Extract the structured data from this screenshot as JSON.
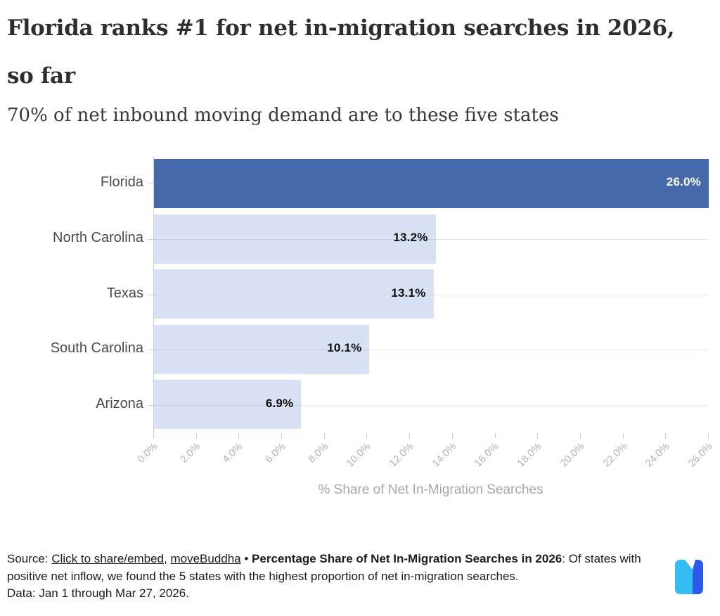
{
  "header": {
    "title_lines": [
      "Florida ranks #1 for net in-migration searches in 2026,",
      "so far"
    ],
    "subtitle": "70% of net inbound moving demand are to these five states"
  },
  "chart_data": {
    "type": "bar",
    "orientation": "horizontal",
    "title": "",
    "categories": [
      "Florida",
      "North Carolina",
      "Texas",
      "South Carolina",
      "Arizona"
    ],
    "values": [
      26.0,
      13.2,
      13.1,
      10.1,
      6.9
    ],
    "value_labels": [
      "26.0%",
      "13.2%",
      "13.1%",
      "10.1%",
      "6.9%"
    ],
    "xlabel": "% Share of Net In-Migration Searches",
    "ylabel": "",
    "xlim": [
      0,
      26
    ],
    "xticks": [
      "0.0%",
      "2.0%",
      "4.0%",
      "6.0%",
      "8.0%",
      "10.0%",
      "12.0%",
      "14.0%",
      "16.0%",
      "18.0%",
      "20.0%",
      "22.0%",
      "24.0%",
      "26.0%"
    ],
    "grid": "horizontal-row-centers",
    "legend": "none",
    "highlight_index": 0,
    "colors": {
      "bar_highlight": "#4569ab",
      "bar_default": "#d9e1f4",
      "value_on_highlight": "#ffffff",
      "value_on_default": "#101010"
    }
  },
  "footer": {
    "source_prefix": "Source: ",
    "link_share": "Click to share/embed",
    "separator1": ", ",
    "link_brand": "moveBuddha",
    "separator2": " • ",
    "bold_title": "Percentage Share of Net In-Migration Searches in 2026",
    "description": ": Of states with positive net inflow, we found the 5 states with the highest proportion of net in-migration searches.",
    "data_note": "Data: Jan 1 through Mar 27, 2026."
  },
  "logo": {
    "name": "moveBuddha logo",
    "color_light": "#35bdf2",
    "color_dark": "#2b59e9"
  }
}
